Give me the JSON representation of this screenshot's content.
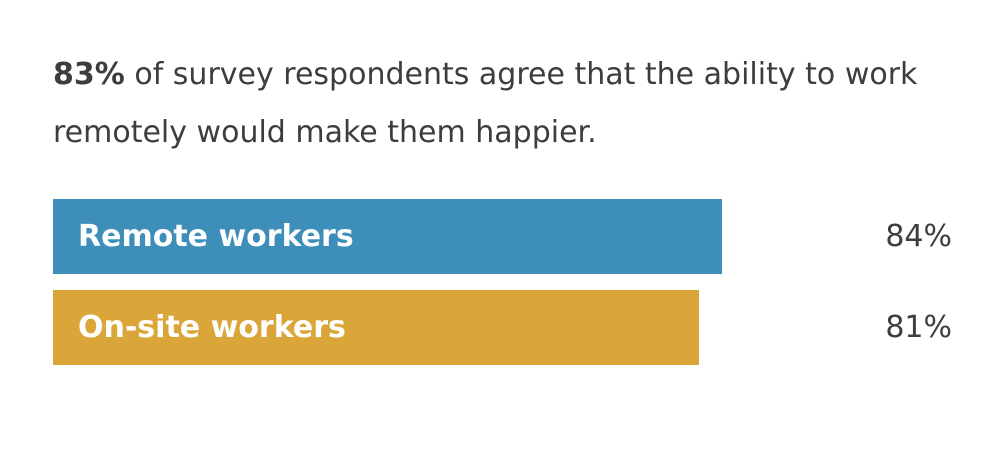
{
  "headline": {
    "stat": "83%",
    "text": " of survey respondents agree that the ability to work remotely would make them happier."
  },
  "chart_data": {
    "type": "bar",
    "orientation": "horizontal",
    "xlim": [
      0,
      100
    ],
    "grid": false,
    "categories": [
      "Remote workers",
      "On-site workers"
    ],
    "values": [
      84,
      81
    ],
    "value_labels": [
      "84%",
      "81%"
    ],
    "colors": [
      "#3d8fb9",
      "#dba639"
    ]
  }
}
